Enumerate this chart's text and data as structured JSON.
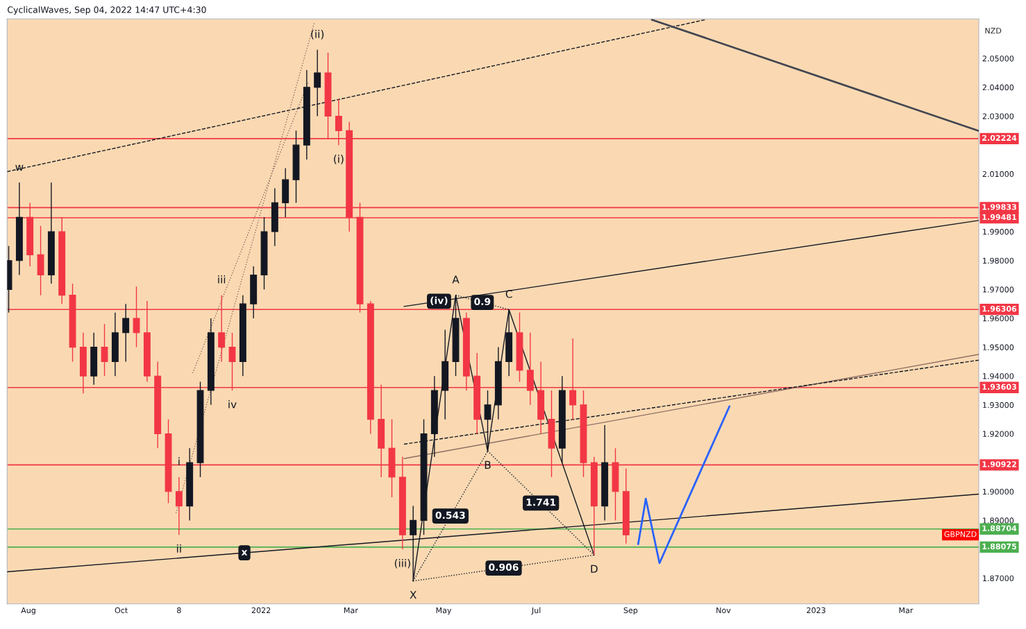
{
  "chart_data": {
    "type": "candlestick",
    "title": "CyclicalWaves, Sep 04, 2022 14:47 UTC+4:30",
    "ylabel": "NZD",
    "x": [
      "2021-07-19",
      "2021-07-26",
      "2021-08-02",
      "2021-08-09",
      "2021-08-16",
      "2021-08-23",
      "2021-08-30",
      "2021-09-06",
      "2021-09-13",
      "2021-09-20",
      "2021-09-27",
      "2021-10-04",
      "2021-10-11",
      "2021-10-18",
      "2021-10-25",
      "2021-11-01",
      "2021-11-08",
      "2021-11-15",
      "2021-11-22",
      "2021-11-29",
      "2021-12-06",
      "2021-12-13",
      "2021-12-20",
      "2021-12-27",
      "2022-01-03",
      "2022-01-10",
      "2022-01-17",
      "2022-01-24",
      "2022-01-31",
      "2022-02-07",
      "2022-02-14",
      "2022-02-21",
      "2022-02-28",
      "2022-03-07",
      "2022-03-14",
      "2022-03-21",
      "2022-03-28",
      "2022-04-04",
      "2022-04-11",
      "2022-04-18",
      "2022-04-25",
      "2022-05-02",
      "2022-05-09",
      "2022-05-16",
      "2022-05-23",
      "2022-05-30",
      "2022-06-06",
      "2022-06-13",
      "2022-06-20",
      "2022-06-27",
      "2022-07-04",
      "2022-07-11",
      "2022-07-18",
      "2022-07-25",
      "2022-08-01",
      "2022-08-08",
      "2022-08-15",
      "2022-08-22",
      "2022-08-29"
    ],
    "ohlc": [
      [
        1.97,
        1.985,
        1.962,
        1.98
      ],
      [
        1.98,
        2.007,
        1.975,
        1.995
      ],
      [
        1.995,
        2.0,
        1.978,
        1.982
      ],
      [
        1.982,
        1.992,
        1.968,
        1.975
      ],
      [
        1.975,
        2.007,
        1.972,
        1.99
      ],
      [
        1.99,
        1.995,
        1.965,
        1.968
      ],
      [
        1.968,
        1.972,
        1.945,
        1.95
      ],
      [
        1.95,
        1.955,
        1.934,
        1.94
      ],
      [
        1.94,
        1.955,
        1.937,
        1.95
      ],
      [
        1.95,
        1.958,
        1.94,
        1.945
      ],
      [
        1.945,
        1.962,
        1.94,
        1.955
      ],
      [
        1.955,
        1.965,
        1.945,
        1.96
      ],
      [
        1.96,
        1.971,
        1.95,
        1.955
      ],
      [
        1.955,
        1.966,
        1.938,
        1.94
      ],
      [
        1.94,
        1.945,
        1.915,
        1.92
      ],
      [
        1.92,
        1.925,
        1.896,
        1.9
      ],
      [
        1.9,
        1.905,
        1.885,
        1.895
      ],
      [
        1.895,
        1.915,
        1.89,
        1.91
      ],
      [
        1.91,
        1.938,
        1.905,
        1.935
      ],
      [
        1.935,
        1.96,
        1.93,
        1.955
      ],
      [
        1.955,
        1.968,
        1.945,
        1.95
      ],
      [
        1.95,
        1.955,
        1.935,
        1.945
      ],
      [
        1.945,
        1.968,
        1.94,
        1.965
      ],
      [
        1.965,
        1.978,
        1.96,
        1.975
      ],
      [
        1.975,
        1.995,
        1.97,
        1.99
      ],
      [
        1.99,
        2.005,
        1.985,
        2.0
      ],
      [
        2.0,
        2.012,
        1.995,
        2.008
      ],
      [
        2.008,
        2.025,
        2.0,
        2.02
      ],
      [
        2.02,
        2.046,
        2.015,
        2.04
      ],
      [
        2.04,
        2.053,
        2.03,
        2.045
      ],
      [
        2.045,
        2.052,
        2.022,
        2.03
      ],
      [
        2.03,
        2.036,
        2.02,
        2.025
      ],
      [
        2.025,
        2.028,
        1.99,
        1.995
      ],
      [
        1.995,
        2.0,
        1.962,
        1.965
      ],
      [
        1.965,
        1.966,
        1.92,
        1.925
      ],
      [
        1.925,
        1.937,
        1.905,
        1.915
      ],
      [
        1.915,
        1.925,
        1.898,
        1.905
      ],
      [
        1.905,
        1.912,
        1.88,
        1.885
      ],
      [
        1.885,
        1.895,
        1.869,
        1.89
      ],
      [
        1.89,
        1.925,
        1.885,
        1.92
      ],
      [
        1.92,
        1.94,
        1.912,
        1.935
      ],
      [
        1.935,
        1.956,
        1.925,
        1.945
      ],
      [
        1.945,
        1.968,
        1.94,
        1.96
      ],
      [
        1.96,
        1.962,
        1.935,
        1.94
      ],
      [
        1.94,
        1.948,
        1.92,
        1.925
      ],
      [
        1.925,
        1.935,
        1.914,
        1.93
      ],
      [
        1.93,
        1.95,
        1.925,
        1.945
      ],
      [
        1.945,
        1.963,
        1.94,
        1.955
      ],
      [
        1.955,
        1.962,
        1.938,
        1.942
      ],
      [
        1.942,
        1.955,
        1.93,
        1.935
      ],
      [
        1.935,
        1.945,
        1.92,
        1.925
      ],
      [
        1.925,
        1.935,
        1.905,
        1.915
      ],
      [
        1.915,
        1.94,
        1.91,
        1.935
      ],
      [
        1.935,
        1.953,
        1.925,
        1.93
      ],
      [
        1.93,
        1.935,
        1.905,
        1.91
      ],
      [
        1.91,
        1.912,
        1.878,
        1.895
      ],
      [
        1.895,
        1.923,
        1.89,
        1.91
      ],
      [
        1.91,
        1.915,
        1.89,
        1.9
      ],
      [
        1.9,
        1.908,
        1.882,
        1.885
      ]
    ],
    "colors": [
      "#131722",
      "#131722",
      "#f23645",
      "#f23645",
      "#131722",
      "#f23645",
      "#f23645",
      "#f23645",
      "#131722",
      "#f23645",
      "#131722",
      "#131722",
      "#f23645",
      "#f23645",
      "#f23645",
      "#f23645",
      "#f23645",
      "#131722",
      "#131722",
      "#131722",
      "#f23645",
      "#f23645",
      "#131722",
      "#131722",
      "#131722",
      "#131722",
      "#131722",
      "#131722",
      "#131722",
      "#131722",
      "#f23645",
      "#f23645",
      "#f23645",
      "#f23645",
      "#f23645",
      "#f23645",
      "#f23645",
      "#f23645",
      "#131722",
      "#131722",
      "#131722",
      "#131722",
      "#131722",
      "#f23645",
      "#f23645",
      "#131722",
      "#131722",
      "#131722",
      "#f23645",
      "#f23645",
      "#f23645",
      "#f23645",
      "#131722",
      "#f23645",
      "#f23645",
      "#f23645",
      "#131722",
      "#f23645",
      "#f23645"
    ],
    "series": [
      {
        "type": "line",
        "x": [
          "2021-07-18",
          "2022-10-20"
        ],
        "values": [
          2.0108,
          2.0634
        ],
        "color": "#131722",
        "line_style": "dashed"
      },
      {
        "type": "line",
        "x": [
          "2022-09-15",
          "2023-04-18"
        ],
        "values": [
          2.0634,
          2.0249
        ],
        "color": "#434651",
        "line_style": "solid"
      },
      {
        "type": "line",
        "x": [
          "2021-07-18",
          "2023-04-18"
        ],
        "values": [
          1.8722,
          1.8991
        ],
        "color": "#131722",
        "line_style": "solid"
      },
      {
        "type": "line",
        "x": [
          "2022-04-05",
          "2023-04-18"
        ],
        "values": [
          1.9641,
          1.9939
        ],
        "color": "#131722",
        "line_style": "solid"
      },
      {
        "type": "line",
        "x": [
          "2022-04-05",
          "2023-04-18"
        ],
        "values": [
          1.9114,
          1.9475
        ],
        "color": "#8d6e63",
        "line_style": "solid"
      },
      {
        "type": "line",
        "x": [
          "2022-04-05",
          "2023-04-18"
        ],
        "values": [
          1.9164,
          1.9455
        ],
        "color": "#131722",
        "line_style": "dashed"
      },
      {
        "type": "line",
        "x": [
          "2021-11-06",
          "2022-02-05"
        ],
        "values": [
          1.8925,
          2.0625
        ],
        "color": "#8d6e63",
        "line_style": "dotted"
      },
      {
        "type": "line",
        "x": [
          "2021-11-17",
          "2022-02-01"
        ],
        "values": [
          1.941,
          2.0418
        ],
        "color": "#8d6e63",
        "line_style": "dotted"
      },
      {
        "type": "line",
        "x": [
          "2022-04-11",
          "2022-05-09",
          "2022-05-30",
          "2022-06-13",
          "2022-08-08"
        ],
        "values": [
          1.869,
          1.968,
          1.914,
          1.963,
          1.878
        ],
        "color": "#131722",
        "line_style": "solid"
      },
      {
        "type": "line",
        "x": [
          "2022-04-11",
          "2022-05-30"
        ],
        "values": [
          1.869,
          1.914
        ],
        "color": "#131722",
        "line_style": "dotted"
      },
      {
        "type": "line",
        "x": [
          "2022-05-09",
          "2022-06-13"
        ],
        "values": [
          1.968,
          1.963
        ],
        "color": "#131722",
        "line_style": "dotted"
      },
      {
        "type": "line",
        "x": [
          "2022-05-30",
          "2022-08-08"
        ],
        "values": [
          1.914,
          1.878
        ],
        "color": "#131722",
        "line_style": "dotted"
      },
      {
        "type": "line",
        "x": [
          "2022-04-11",
          "2022-08-08"
        ],
        "values": [
          1.869,
          1.878
        ],
        "color": "#131722",
        "line_style": "dotted"
      },
      {
        "type": "line",
        "x": [
          "2022-09-06",
          "2022-09-11",
          "2022-09-20",
          "2022-11-05"
        ],
        "values": [
          1.8818,
          1.8975,
          1.8752,
          1.9295
        ],
        "color": "#2962ff",
        "line_style": "solid"
      }
    ],
    "ref_lines": [
      {
        "axis": "y",
        "value": 2.02224,
        "label": "2.02224",
        "color": "#f23645"
      },
      {
        "axis": "y",
        "value": 1.99833,
        "label": "1.99833",
        "color": "#f23645"
      },
      {
        "axis": "y",
        "value": 1.99481,
        "label": "1.99481",
        "color": "#f23645"
      },
      {
        "axis": "y",
        "value": 1.96306,
        "label": "1.96306",
        "color": "#f23645"
      },
      {
        "axis": "y",
        "value": 1.93603,
        "label": "1.93603",
        "color": "#f23645"
      },
      {
        "axis": "y",
        "value": 1.90922,
        "label": "1.90922",
        "color": "#f23645"
      },
      {
        "axis": "y",
        "value": 1.88704,
        "label": "1.88704",
        "color": "#4caf50"
      },
      {
        "axis": "y",
        "value": 1.88075,
        "label": "1.88075",
        "color": "#4caf50"
      }
    ],
    "annotations": [
      {
        "text": "w",
        "x": "2021-07-26",
        "y": 2.007
      },
      {
        "text": "(ii)",
        "x": "2022-02-07",
        "y": 2.053
      },
      {
        "text": "(i)",
        "x": "2022-02-21",
        "y": 2.02
      },
      {
        "text": "iii",
        "x": "2021-12-06",
        "y": 1.968
      },
      {
        "text": "iv",
        "x": "2021-12-13",
        "y": 1.935
      },
      {
        "text": "i",
        "x": "2021-11-08",
        "y": 1.905
      },
      {
        "text": "ii",
        "x": "2021-11-08",
        "y": 1.885
      },
      {
        "text": "x",
        "x": "2021-12-21",
        "y": 1.8788
      },
      {
        "text": "(iii)",
        "x": "2022-04-04",
        "y": 1.88
      },
      {
        "text": "(iv)",
        "x": "2022-04-28",
        "y": 1.9659
      },
      {
        "text": "A",
        "x": "2022-05-09",
        "y": 1.968
      },
      {
        "text": "B",
        "x": "2022-05-30",
        "y": 1.914
      },
      {
        "text": "C",
        "x": "2022-06-13",
        "y": 1.963
      },
      {
        "text": "D",
        "x": "2022-08-08",
        "y": 1.878
      },
      {
        "text": "X",
        "x": "2022-04-11",
        "y": 1.869
      },
      {
        "text": "0.9",
        "x": "2022-05-26T12:00",
        "y": 1.9655
      },
      {
        "text": "1.741",
        "x": "2022-07-04",
        "y": 1.896
      },
      {
        "text": "0.543",
        "x": "2022-05-05T12:00",
        "y": 1.8915
      },
      {
        "text": "0.906",
        "x": "2022-06-09T12:00",
        "y": 1.8735
      },
      "GBPNZD"
    ],
    "xlim": [
      "2021-07-18",
      "2023-04-18"
    ],
    "xticks": [
      {
        "value": "2021-08-01",
        "label": "Aug"
      },
      {
        "value": "2021-10-01",
        "label": "Oct"
      },
      {
        "value": "2021-11-08",
        "label": "8"
      },
      {
        "value": "2022-01-01",
        "label": "2022"
      },
      {
        "value": "2022-03-01",
        "label": "Mar"
      },
      {
        "value": "2022-05-01",
        "label": "May"
      },
      {
        "value": "2022-07-01",
        "label": "Jul"
      },
      {
        "value": "2022-09-01",
        "label": "Sep"
      },
      {
        "value": "2022-11-01",
        "label": "Nov"
      },
      {
        "value": "2023-01-01",
        "label": "2023"
      },
      {
        "value": "2023-03-01",
        "label": "Mar"
      }
    ],
    "ylim": [
      1.8611,
      2.0637
    ],
    "yticks": [
      {
        "value": 1.87,
        "label": "1.87000"
      },
      {
        "value": 1.89,
        "label": "1.89000"
      },
      {
        "value": 1.9,
        "label": "1.90000"
      },
      {
        "value": 1.92,
        "label": "1.92000"
      },
      {
        "value": 1.93,
        "label": "1.93000"
      },
      {
        "value": 1.94,
        "label": "1.94000"
      },
      {
        "value": 1.95,
        "label": "1.95000"
      },
      {
        "value": 1.96,
        "label": "1.96000"
      },
      {
        "value": 1.97,
        "label": "1.97000"
      },
      {
        "value": 1.98,
        "label": "1.98000"
      },
      {
        "value": 1.99,
        "label": "1.99000"
      },
      {
        "value": 2.01,
        "label": "2.01000"
      },
      {
        "value": 2.03,
        "label": "2.03000"
      },
      {
        "value": 2.04,
        "label": "2.04000"
      },
      {
        "value": 2.05,
        "label": "2.05000"
      }
    ],
    "grid": false,
    "legend": false
  }
}
